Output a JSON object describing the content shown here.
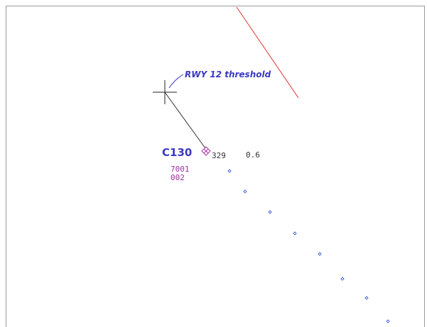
{
  "annotation": {
    "label": "RWY 12 threshold"
  },
  "target": {
    "callsign": "C130",
    "heading": "329",
    "speed": "0.6",
    "squawk": "7001",
    "altitude": "002"
  }
}
